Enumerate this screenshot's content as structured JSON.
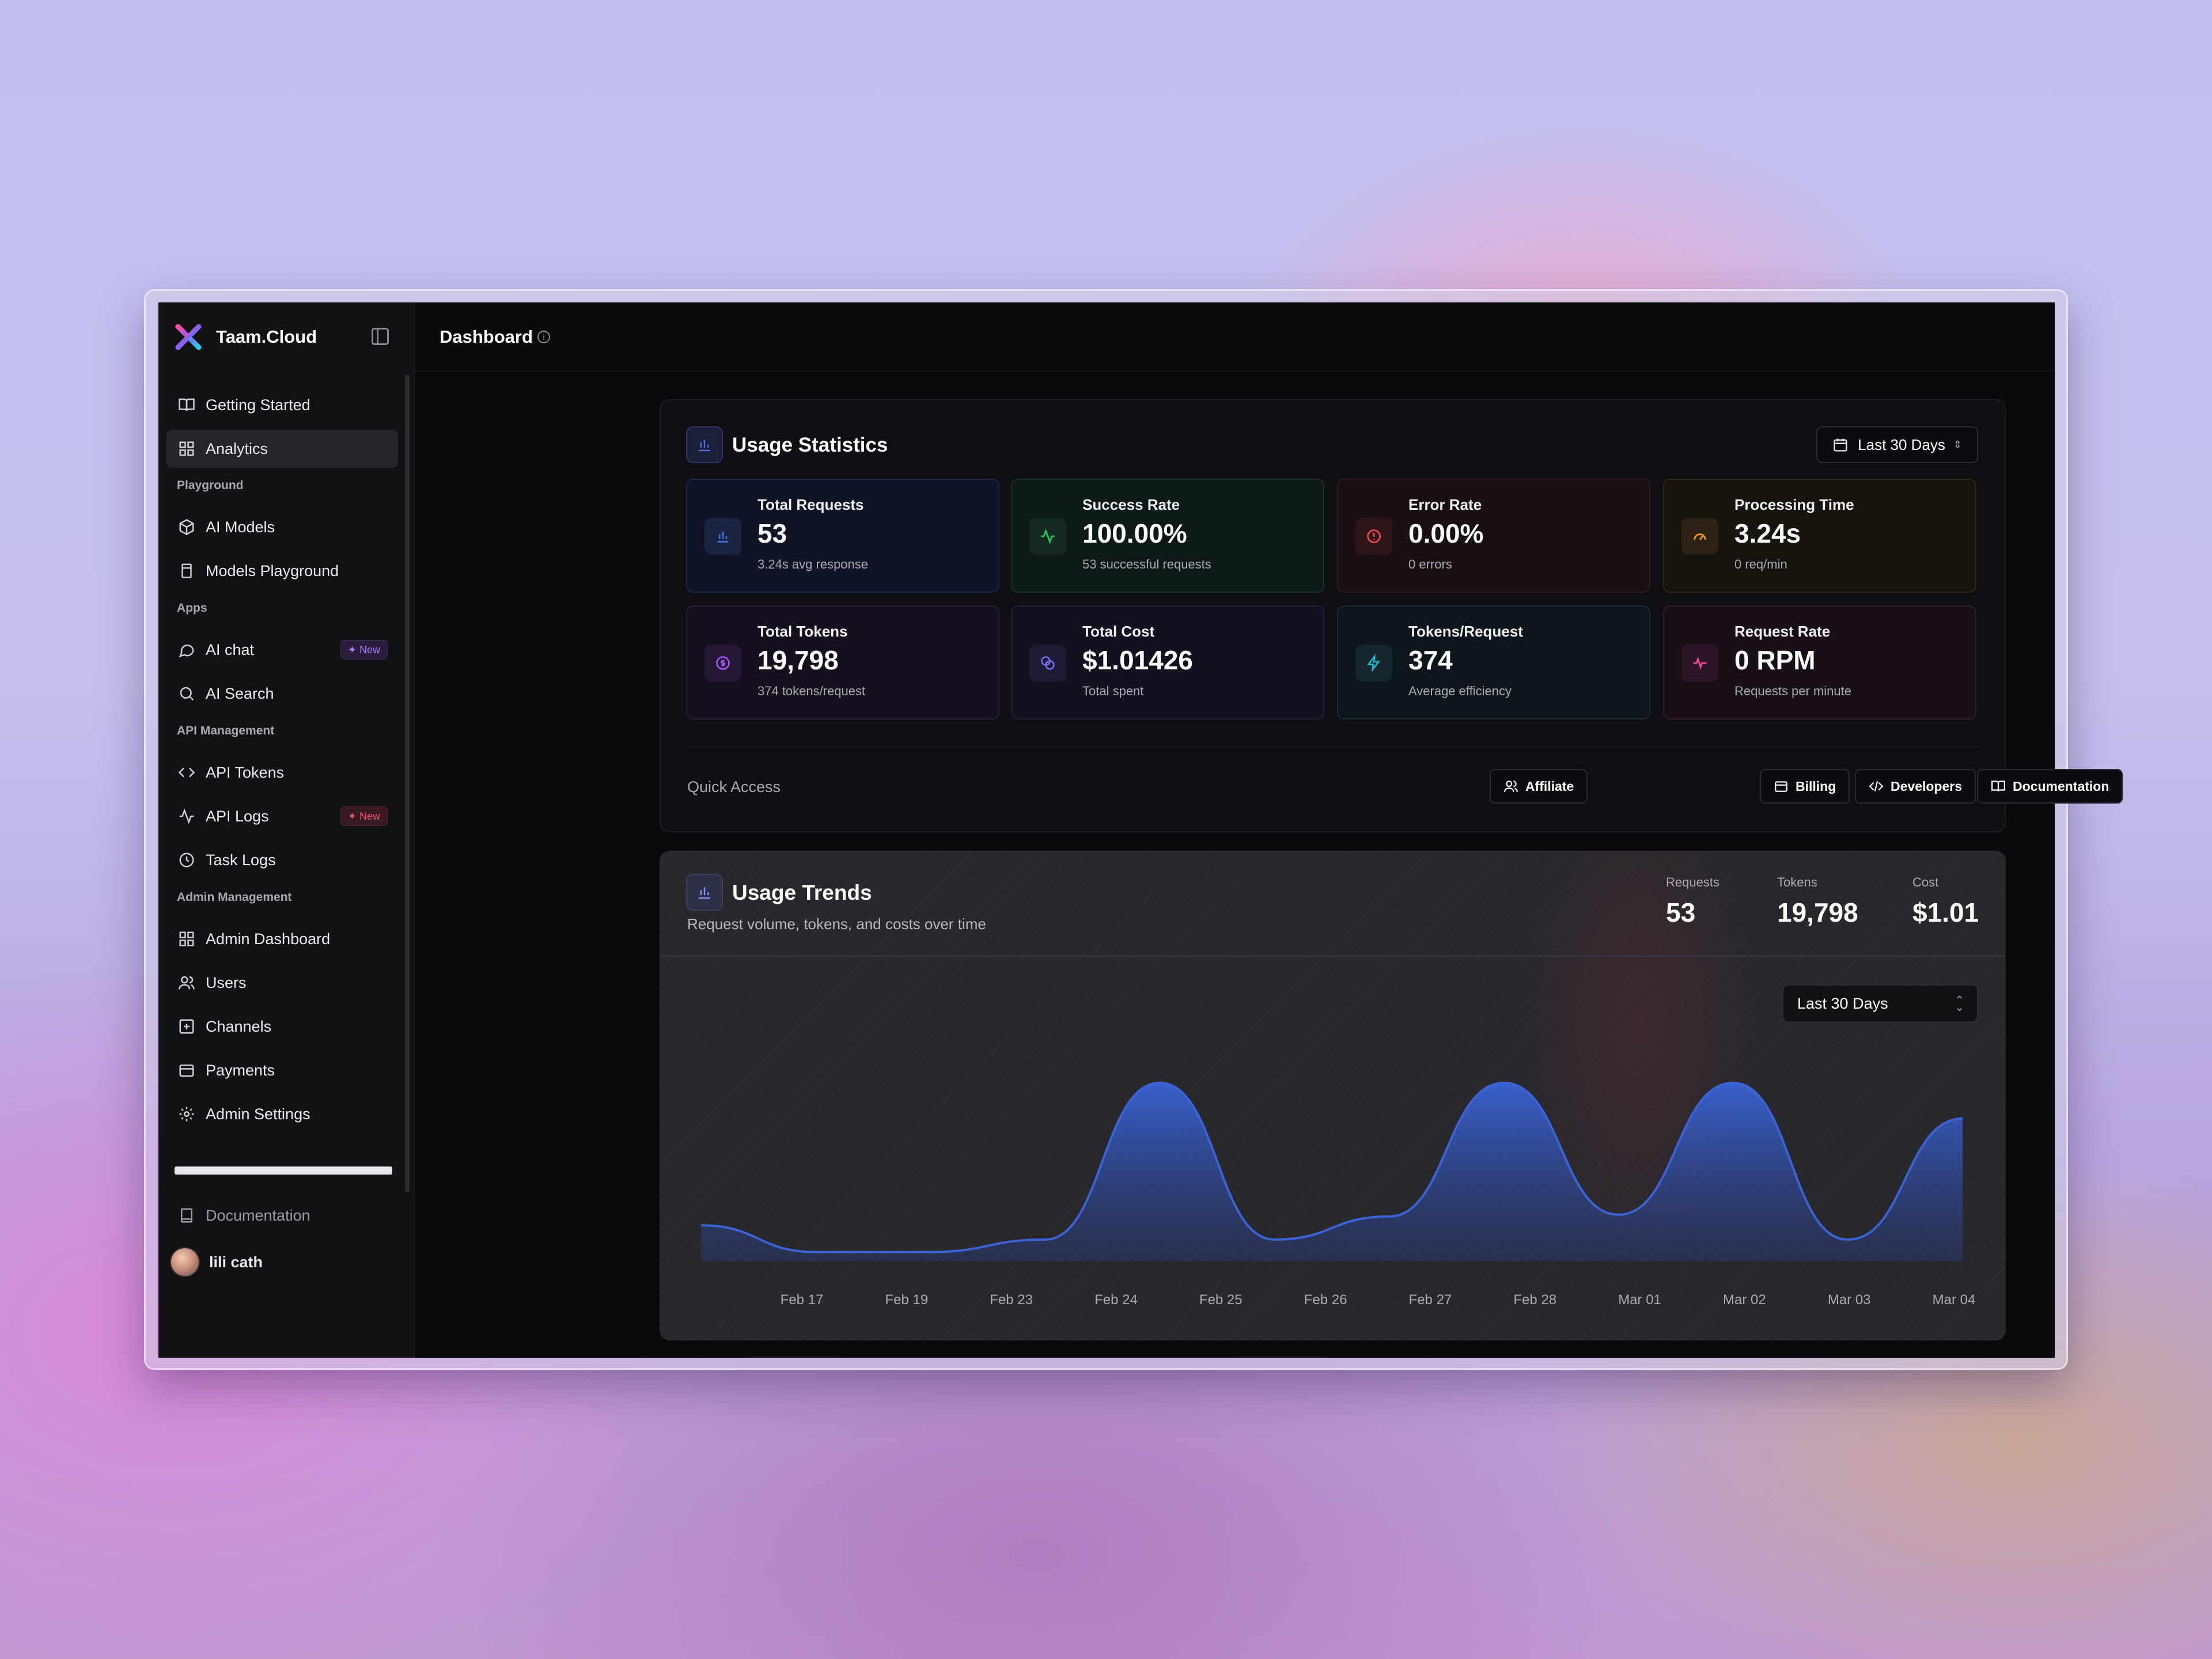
{
  "app": {
    "name": "Taam.Cloud"
  },
  "topbar": {
    "title": "Dashboard"
  },
  "sidebar": {
    "top_items": [
      {
        "label": "Getting Started",
        "icon": "book-open-icon"
      },
      {
        "label": "Analytics",
        "icon": "grid-icon",
        "active": true
      }
    ],
    "sections": [
      {
        "title": "Playground",
        "items": [
          {
            "label": "AI Models",
            "icon": "cube-icon"
          },
          {
            "label": "Models Playground",
            "icon": "flask-icon"
          }
        ]
      },
      {
        "title": "Apps",
        "items": [
          {
            "label": "AI chat",
            "icon": "chat-bubble-icon",
            "badge": "New"
          },
          {
            "label": "AI Search",
            "icon": "search-icon"
          }
        ]
      },
      {
        "title": "API Management",
        "items": [
          {
            "label": "API Tokens",
            "icon": "code-icon"
          },
          {
            "label": "API Logs",
            "icon": "activity-icon",
            "badge": "New"
          },
          {
            "label": "Task Logs",
            "icon": "clock-icon"
          }
        ]
      },
      {
        "title": "Admin Management",
        "items": [
          {
            "label": "Admin Dashboard",
            "icon": "grid-icon"
          },
          {
            "label": "Users",
            "icon": "users-icon"
          },
          {
            "label": "Channels",
            "icon": "plus-square-icon"
          },
          {
            "label": "Payments",
            "icon": "wallet-icon"
          },
          {
            "label": "Admin Settings",
            "icon": "gear-icon"
          }
        ]
      }
    ],
    "footer_link": "Documentation",
    "user": {
      "name": "lili cath"
    }
  },
  "usage_statistics": {
    "title": "Usage Statistics",
    "date_range": "Last 30 Days",
    "cards": [
      {
        "label": "Total Requests",
        "value": "53",
        "sub": "3.24s avg response",
        "icon": "bar-chart-icon",
        "accent": "#3b6fe0"
      },
      {
        "label": "Success Rate",
        "value": "100.00%",
        "sub": "53 successful requests",
        "icon": "activity-icon",
        "accent": "#22c55e"
      },
      {
        "label": "Error Rate",
        "value": "0.00%",
        "sub": "0 errors",
        "icon": "alert-circle-icon",
        "accent": "#ef4444"
      },
      {
        "label": "Processing Time",
        "value": "3.24s",
        "sub": "0 req/min",
        "icon": "gauge-icon",
        "accent": "#f59e0b"
      },
      {
        "label": "Total Tokens",
        "value": "19,798",
        "sub": "374 tokens/request",
        "icon": "coin-icon",
        "accent": "#a855f7"
      },
      {
        "label": "Total Cost",
        "value": "$1.01426",
        "sub": "Total spent",
        "icon": "coins-icon",
        "accent": "#7c6cf0"
      },
      {
        "label": "Tokens/Request",
        "value": "374",
        "sub": "Average efficiency",
        "icon": "lightning-icon",
        "accent": "#22b8cf"
      },
      {
        "label": "Request Rate",
        "value": "0 RPM",
        "sub": "Requests per minute",
        "icon": "pulse-icon",
        "accent": "#ec4899"
      }
    ],
    "quick_access": {
      "label": "Quick Access",
      "buttons": [
        {
          "label": "Affiliate",
          "icon": "users-icon"
        },
        {
          "label": "Billing",
          "icon": "wallet-icon"
        },
        {
          "label": "Developers",
          "icon": "code-icon"
        },
        {
          "label": "Documentation",
          "icon": "book-open-icon"
        }
      ]
    }
  },
  "usage_trends": {
    "title": "Usage Trends",
    "subtitle": "Request volume, tokens, and costs over time",
    "stats": [
      {
        "label": "Requests",
        "value": "53"
      },
      {
        "label": "Tokens",
        "value": "19,798"
      },
      {
        "label": "Cost",
        "value": "$1.01"
      }
    ],
    "range_select": "Last 30 Days"
  },
  "chart_data": {
    "type": "area",
    "categories": [
      "Feb 17",
      "Feb 19",
      "Feb 23",
      "Feb 24",
      "Feb 25",
      "Feb 26",
      "Feb 27",
      "Feb 28",
      "Mar 01",
      "Mar 02",
      "Mar 03",
      "Mar 04"
    ],
    "series": [
      {
        "values": [
          2,
          0.5,
          0.5,
          1.2,
          10,
          1.2,
          2.5,
          10,
          2.6,
          10,
          1.2,
          8
        ]
      }
    ],
    "ylim": [
      0,
      11
    ],
    "grid": false,
    "color": "#3a63d6"
  }
}
